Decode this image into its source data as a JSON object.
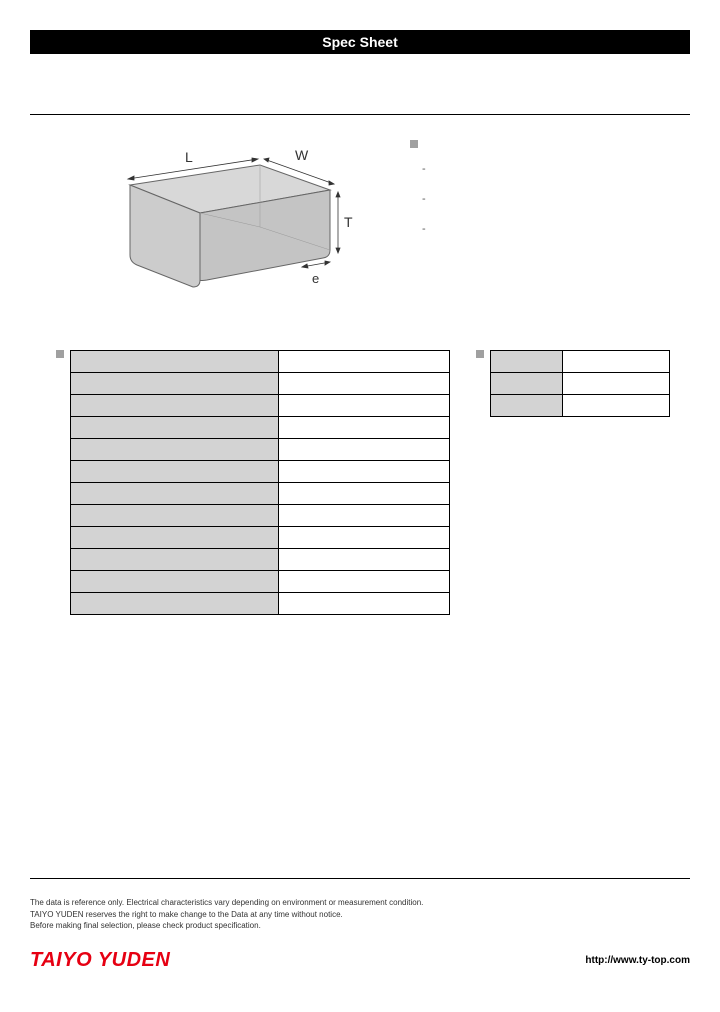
{
  "title": "Spec Sheet",
  "diagram": {
    "fill": "#cccccc",
    "stroke": "#666666",
    "label_color": "#333333",
    "labels": {
      "L": "L",
      "W": "W",
      "T": "T",
      "e": "e"
    }
  },
  "notes": {
    "marker_color": "#a0a0a0",
    "items": [
      "-",
      "-",
      "-"
    ]
  },
  "spec_table": {
    "rows": [
      {
        "label": "",
        "value": ""
      },
      {
        "label": "",
        "value": ""
      },
      {
        "label": "",
        "value": ""
      },
      {
        "label": "",
        "value": ""
      },
      {
        "label": "",
        "value": ""
      },
      {
        "label": "",
        "value": ""
      },
      {
        "label": "",
        "value": ""
      },
      {
        "label": "",
        "value": ""
      },
      {
        "label": "",
        "value": ""
      },
      {
        "label": "",
        "value": ""
      },
      {
        "label": "",
        "value": ""
      },
      {
        "label": "",
        "value": ""
      }
    ],
    "label_bg": "#d3d3d3",
    "value_bg": "#ffffff",
    "border_color": "#000000"
  },
  "side_table": {
    "rows": [
      {
        "label": "",
        "value": ""
      },
      {
        "label": "",
        "value": ""
      },
      {
        "label": "",
        "value": ""
      }
    ],
    "label_bg": "#d3d3d3",
    "value_bg": "#ffffff",
    "border_color": "#000000"
  },
  "disclaimer": {
    "line1": "The data is reference only. Electrical characteristics vary depending on environment or measurement condition.",
    "line2": "TAIYO YUDEN reserves the right to make change to the Data at any time without notice.",
    "line3": "Before making final selection, please check product specification."
  },
  "logo_text": "TAIYO YUDEN",
  "logo_color": "#e60012",
  "url": "http://www.ty-top.com"
}
